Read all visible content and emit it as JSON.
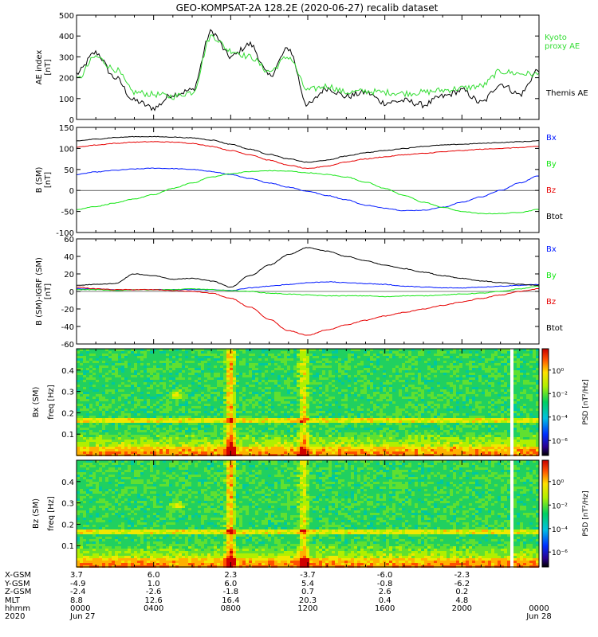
{
  "title": "GEO-KOMPSAT-2A 128.2E (2020-06-27) recalib dataset",
  "colors": {
    "black": "#000000",
    "blue": "#0018ff",
    "green": "#14e614",
    "red": "#e60000",
    "ae_green": "#33dd33"
  },
  "chart_data": [
    {
      "type": "line",
      "ylabel": "AE index\n[nT]",
      "ylim": [
        0,
        500
      ],
      "yticks": [
        "0",
        "100",
        "200",
        "300",
        "400",
        "500"
      ],
      "x_hours": [
        0,
        1,
        2,
        3,
        4,
        5,
        6,
        7,
        8,
        9,
        10,
        11,
        12,
        13,
        14,
        15,
        16,
        17,
        18,
        19,
        20,
        21,
        22,
        23,
        24
      ],
      "series": [
        {
          "name": "Themis AE",
          "color": "#000000",
          "values": [
            220,
            320,
            200,
            90,
            55,
            120,
            140,
            420,
            300,
            360,
            210,
            340,
            70,
            150,
            110,
            130,
            80,
            90,
            70,
            110,
            140,
            80,
            170,
            120,
            240
          ]
        },
        {
          "name": "Kyoto\nproxy AE",
          "color": "#33dd33",
          "values": [
            190,
            300,
            240,
            130,
            120,
            110,
            130,
            400,
            330,
            300,
            230,
            300,
            140,
            160,
            130,
            135,
            130,
            125,
            130,
            140,
            150,
            160,
            230,
            220,
            215
          ]
        }
      ]
    },
    {
      "type": "line",
      "ylabel": "B (SM)\n[nT]",
      "ylim": [
        -100,
        150
      ],
      "yticks": [
        "-100",
        "-50",
        "0",
        "50",
        "100",
        "150"
      ],
      "x_hours": [
        0,
        1,
        2,
        3,
        4,
        5,
        6,
        7,
        8,
        9,
        10,
        11,
        12,
        13,
        14,
        15,
        16,
        17,
        18,
        19,
        20,
        21,
        22,
        23,
        24
      ],
      "series": [
        {
          "name": "Bx",
          "color": "#0018ff",
          "values": [
            38,
            44,
            48,
            51,
            53,
            52,
            50,
            45,
            38,
            28,
            18,
            8,
            -2,
            -12,
            -22,
            -35,
            -42,
            -48,
            -47,
            -40,
            -28,
            -15,
            0,
            18,
            35
          ]
        },
        {
          "name": "By",
          "color": "#14e614",
          "values": [
            -45,
            -38,
            -30,
            -20,
            -10,
            5,
            18,
            32,
            40,
            45,
            47,
            46,
            42,
            38,
            32,
            20,
            5,
            -12,
            -28,
            -40,
            -50,
            -55,
            -55,
            -52,
            -45
          ]
        },
        {
          "name": "Bz",
          "color": "#e60000",
          "values": [
            103,
            108,
            112,
            115,
            116,
            115,
            112,
            105,
            95,
            85,
            72,
            60,
            52,
            58,
            68,
            75,
            80,
            85,
            88,
            92,
            95,
            98,
            100,
            102,
            105
          ]
        },
        {
          "name": "Btot",
          "color": "#000000",
          "values": [
            118,
            122,
            126,
            128,
            128,
            127,
            125,
            120,
            110,
            98,
            86,
            75,
            67,
            72,
            82,
            90,
            95,
            100,
            105,
            108,
            110,
            112,
            114,
            116,
            118
          ]
        }
      ]
    },
    {
      "type": "line",
      "ylabel": "B (SM)-IGRF (SM)\n[nT]",
      "ylim": [
        -60,
        60
      ],
      "yticks": [
        "-60",
        "-40",
        "-20",
        "0",
        "20",
        "40",
        "60"
      ],
      "x_hours": [
        0,
        1,
        2,
        3,
        4,
        5,
        6,
        7,
        8,
        9,
        10,
        11,
        12,
        13,
        14,
        15,
        16,
        17,
        18,
        19,
        20,
        21,
        22,
        23,
        24
      ],
      "series": [
        {
          "name": "Bx",
          "color": "#0018ff",
          "values": [
            3,
            3,
            2,
            2,
            2,
            2,
            2,
            2,
            1,
            4,
            6,
            8,
            10,
            11,
            10,
            9,
            8,
            6,
            5,
            4,
            4,
            5,
            6,
            7,
            8
          ]
        },
        {
          "name": "By",
          "color": "#14e614",
          "values": [
            2,
            2,
            1,
            2,
            2,
            2,
            3,
            2,
            1,
            0,
            -2,
            -3,
            -4,
            -5,
            -5,
            -5,
            -6,
            -5,
            -5,
            -4,
            -3,
            -2,
            0,
            3,
            6
          ]
        },
        {
          "name": "Bz",
          "color": "#e60000",
          "values": [
            5,
            3,
            2,
            2,
            2,
            1,
            0,
            -2,
            -8,
            -18,
            -32,
            -45,
            -50,
            -44,
            -38,
            -33,
            -28,
            -24,
            -20,
            -16,
            -12,
            -8,
            -4,
            0,
            3
          ]
        },
        {
          "name": "Btot",
          "color": "#000000",
          "values": [
            7,
            8,
            9,
            20,
            18,
            14,
            15,
            12,
            5,
            18,
            30,
            42,
            50,
            46,
            40,
            35,
            30,
            26,
            22,
            18,
            15,
            12,
            10,
            8,
            7
          ]
        }
      ]
    },
    {
      "type": "heatmap",
      "ylabel": "Bx (SM)",
      "ylabel2": "freq [Hz]",
      "yticks": [
        "0.1",
        "0.2",
        "0.3",
        "0.4"
      ],
      "ylim": [
        0,
        0.5
      ],
      "colorbar_label": "PSD [nT²/Hz]",
      "colorbar_ticks": [
        "10⁰",
        "10⁻²",
        "10⁻⁴",
        "10⁻⁶"
      ],
      "features": [
        {
          "kind": "vertical band",
          "hour": 7.9
        },
        {
          "kind": "vertical band",
          "hour": 11.7
        },
        {
          "kind": "horizontal line",
          "freq": 0.17
        },
        {
          "kind": "blob",
          "hour": 5.1,
          "freq": 0.29
        }
      ]
    },
    {
      "type": "heatmap",
      "ylabel": "Bz (SM)",
      "ylabel2": "freq [Hz]",
      "yticks": [
        "0.1",
        "0.2",
        "0.3",
        "0.4"
      ],
      "ylim": [
        0,
        0.5
      ],
      "colorbar_label": "PSD [nT²/Hz]",
      "colorbar_ticks": [
        "10⁰",
        "10⁻²",
        "10⁻⁴",
        "10⁻⁶"
      ],
      "features": [
        {
          "kind": "vertical band",
          "hour": 7.9
        },
        {
          "kind": "vertical band",
          "hour": 11.7
        },
        {
          "kind": "horizontal line",
          "freq": 0.17
        },
        {
          "kind": "blob",
          "hour": 5.1,
          "freq": 0.29
        }
      ]
    }
  ],
  "footer": {
    "row_labels": [
      "X-GSM",
      "Y-GSM",
      "Z-GSM",
      "MLT",
      "hhmm",
      "2020"
    ],
    "columns": [
      {
        "hour": 0,
        "values": [
          "3.7",
          "-4.9",
          "-2.4",
          "8.8",
          "0000",
          "Jun 27"
        ]
      },
      {
        "hour": 4,
        "values": [
          "6.0",
          "1.0",
          "-2.6",
          "12.6",
          "0400",
          ""
        ]
      },
      {
        "hour": 8,
        "values": [
          "2.3",
          "6.0",
          "-1.8",
          "16.4",
          "0800",
          ""
        ]
      },
      {
        "hour": 12,
        "values": [
          "-3.7",
          "5.4",
          "0.7",
          "20.3",
          "1200",
          ""
        ]
      },
      {
        "hour": 16,
        "values": [
          "-6.0",
          "-0.8",
          "2.6",
          "0.4",
          "1600",
          ""
        ]
      },
      {
        "hour": 20,
        "values": [
          "-2.3",
          "-6.2",
          "0.2",
          "4.8",
          "2000",
          ""
        ]
      },
      {
        "hour": 24,
        "values": [
          "",
          "",
          "",
          "",
          "0000",
          "Jun 28"
        ]
      }
    ]
  }
}
